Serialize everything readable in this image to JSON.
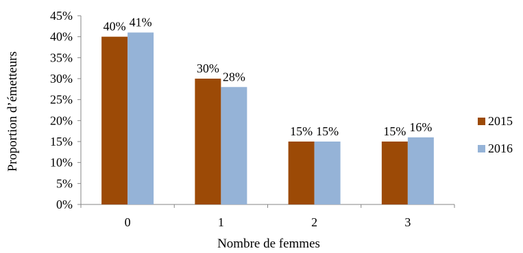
{
  "chart_data": {
    "type": "bar",
    "categories": [
      "0",
      "1",
      "2",
      "3"
    ],
    "series": [
      {
        "name": "2015",
        "values": [
          40,
          30,
          15,
          15
        ],
        "labels": [
          "40%",
          "30%",
          "15%",
          "15%"
        ],
        "color": "#9C4A06"
      },
      {
        "name": "2016",
        "values": [
          41,
          28,
          15,
          16
        ],
        "labels": [
          "41%",
          "28%",
          "15%",
          "16%"
        ],
        "color": "#95B3D7"
      }
    ],
    "xlabel": "Nombre de femmes",
    "ylabel": "Proportion d’émetteurs",
    "ylim": [
      0,
      45
    ],
    "yticks": [
      0,
      5,
      10,
      15,
      20,
      25,
      30,
      35,
      40,
      45
    ],
    "ytick_labels": [
      "0%",
      "5%",
      "10%",
      "15%",
      "20%",
      "25%",
      "30%",
      "35%",
      "40%",
      "45%"
    ],
    "grid": false,
    "legend_position": "right"
  }
}
